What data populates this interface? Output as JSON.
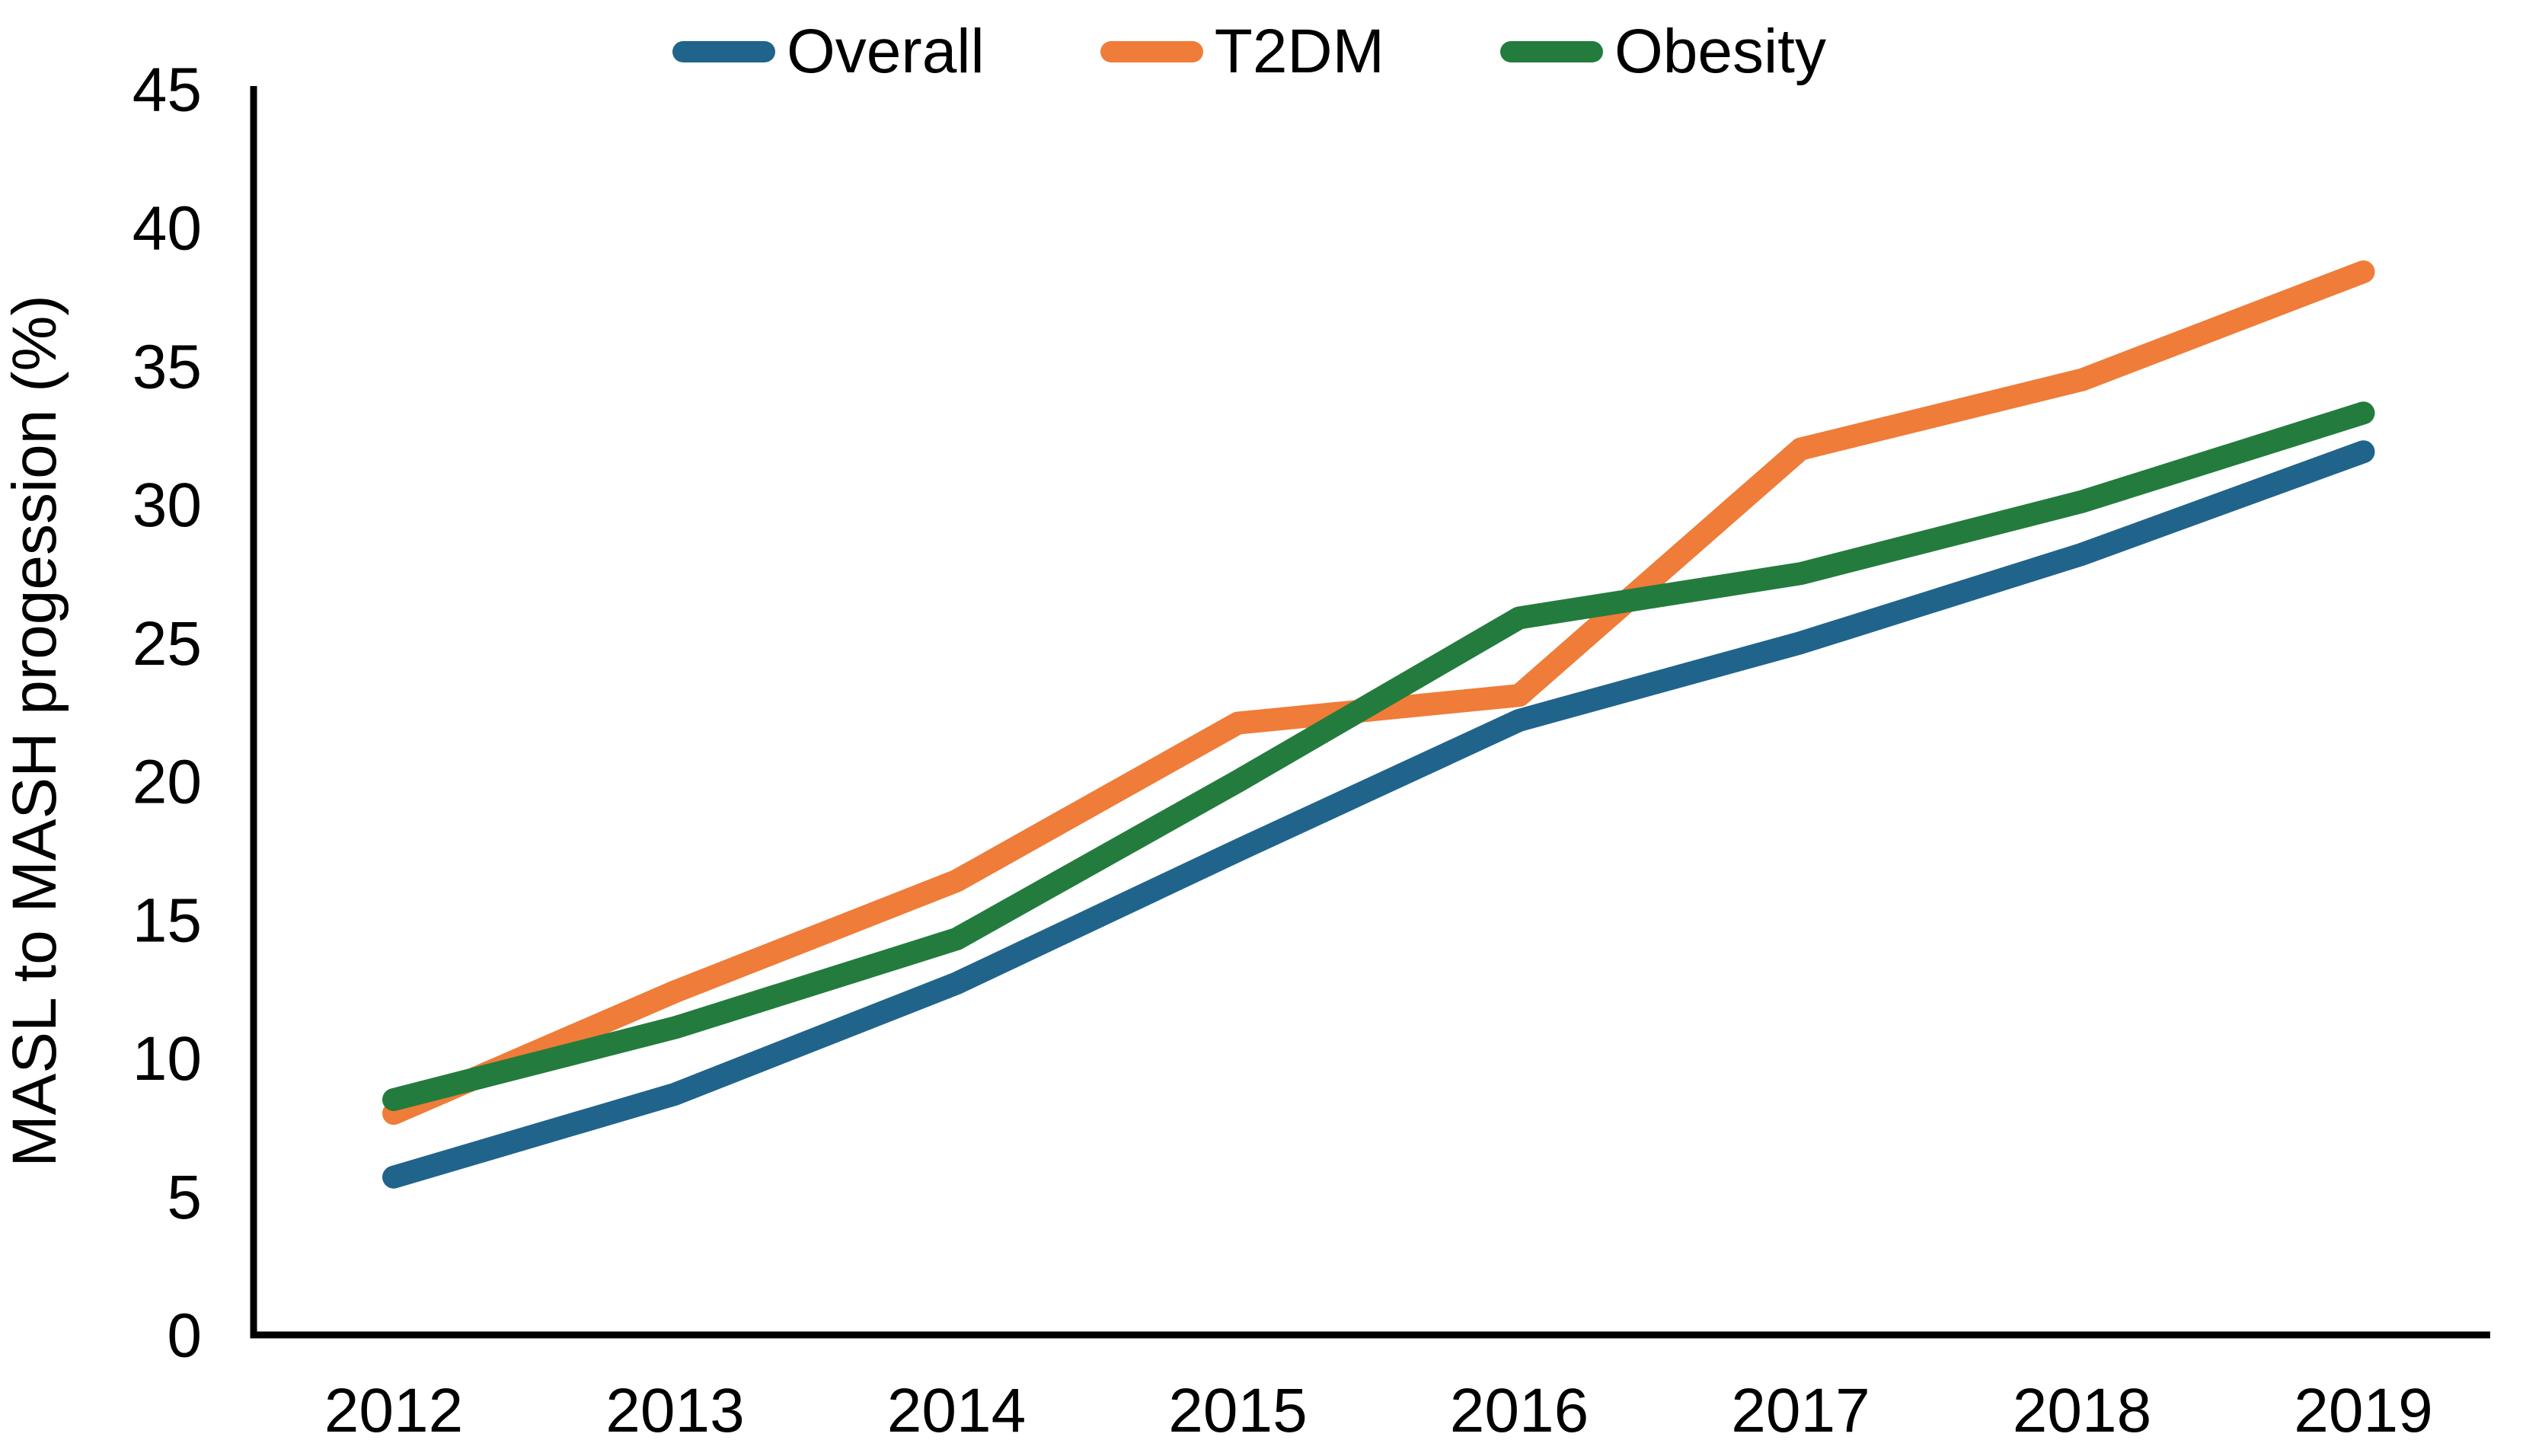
{
  "chart_data": {
    "type": "line",
    "title": "",
    "xlabel": "",
    "ylabel": "MASL to MASH progession (%)",
    "x": [
      "2012",
      "2013",
      "2014",
      "2015",
      "2016",
      "2017",
      "2018",
      "2019"
    ],
    "y_ticks": [
      0,
      5,
      10,
      15,
      20,
      25,
      30,
      35,
      40,
      45
    ],
    "ylim": [
      0,
      45
    ],
    "grid": false,
    "legend_position": "top",
    "axis_color": "#000000",
    "background_color": "#ffffff",
    "series": [
      {
        "name": "Overall",
        "color": "#20648B",
        "values": [
          5.7,
          8.7,
          12.7,
          17.5,
          22.2,
          25.0,
          28.2,
          31.9
        ]
      },
      {
        "name": "T2DM",
        "color": "#EF7C38",
        "values": [
          8.0,
          12.4,
          16.4,
          22.1,
          23.1,
          32.0,
          34.5,
          38.4
        ]
      },
      {
        "name": "Obesity",
        "color": "#237C3D",
        "values": [
          8.5,
          11.1,
          14.3,
          20.0,
          25.9,
          27.5,
          30.1,
          33.3
        ]
      }
    ]
  }
}
